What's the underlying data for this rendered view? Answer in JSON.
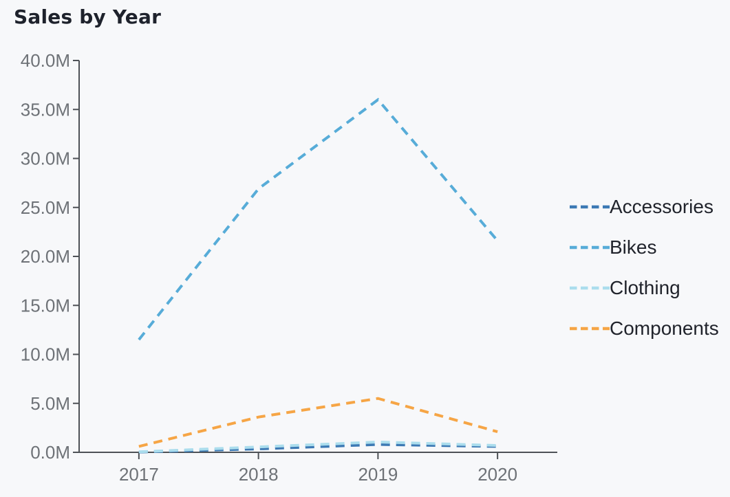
{
  "page": {
    "background_color": "#f7f8fa"
  },
  "chart_data": {
    "type": "line",
    "title": "Sales by Year",
    "line_style": "dashed",
    "grid": false,
    "legend_position": "right",
    "x_categories": [
      "2017",
      "2018",
      "2019",
      "2020"
    ],
    "series": [
      {
        "name": "Accessories",
        "color": "#3c79b4",
        "values_millions": [
          0.03,
          0.35,
          0.8,
          0.6
        ]
      },
      {
        "name": "Bikes",
        "color": "#57acd8",
        "values_millions": [
          11.5,
          26.9,
          36.0,
          21.6
        ]
      },
      {
        "name": "Clothing",
        "color": "#abdded",
        "values_millions": [
          0.05,
          0.55,
          1.05,
          0.7
        ]
      },
      {
        "name": "Components",
        "color": "#f6a545",
        "values_millions": [
          0.6,
          3.6,
          5.5,
          2.1
        ]
      }
    ],
    "ylim_millions": [
      0,
      40
    ],
    "y_ticks": [
      {
        "value": 0,
        "label": "0.0M"
      },
      {
        "value": 5,
        "label": "5.0M"
      },
      {
        "value": 10,
        "label": "10.0M"
      },
      {
        "value": 15,
        "label": "15.0M"
      },
      {
        "value": 20,
        "label": "20.0M"
      },
      {
        "value": 25,
        "label": "25.0M"
      },
      {
        "value": 30,
        "label": "30.0M"
      },
      {
        "value": 35,
        "label": "35.0M"
      },
      {
        "value": 40,
        "label": "40.0M"
      }
    ],
    "axis_color": "#4d5156",
    "tick_label_color": "#6e7277",
    "title_color": "#1e222c",
    "legend_text_color": "#21242c"
  }
}
